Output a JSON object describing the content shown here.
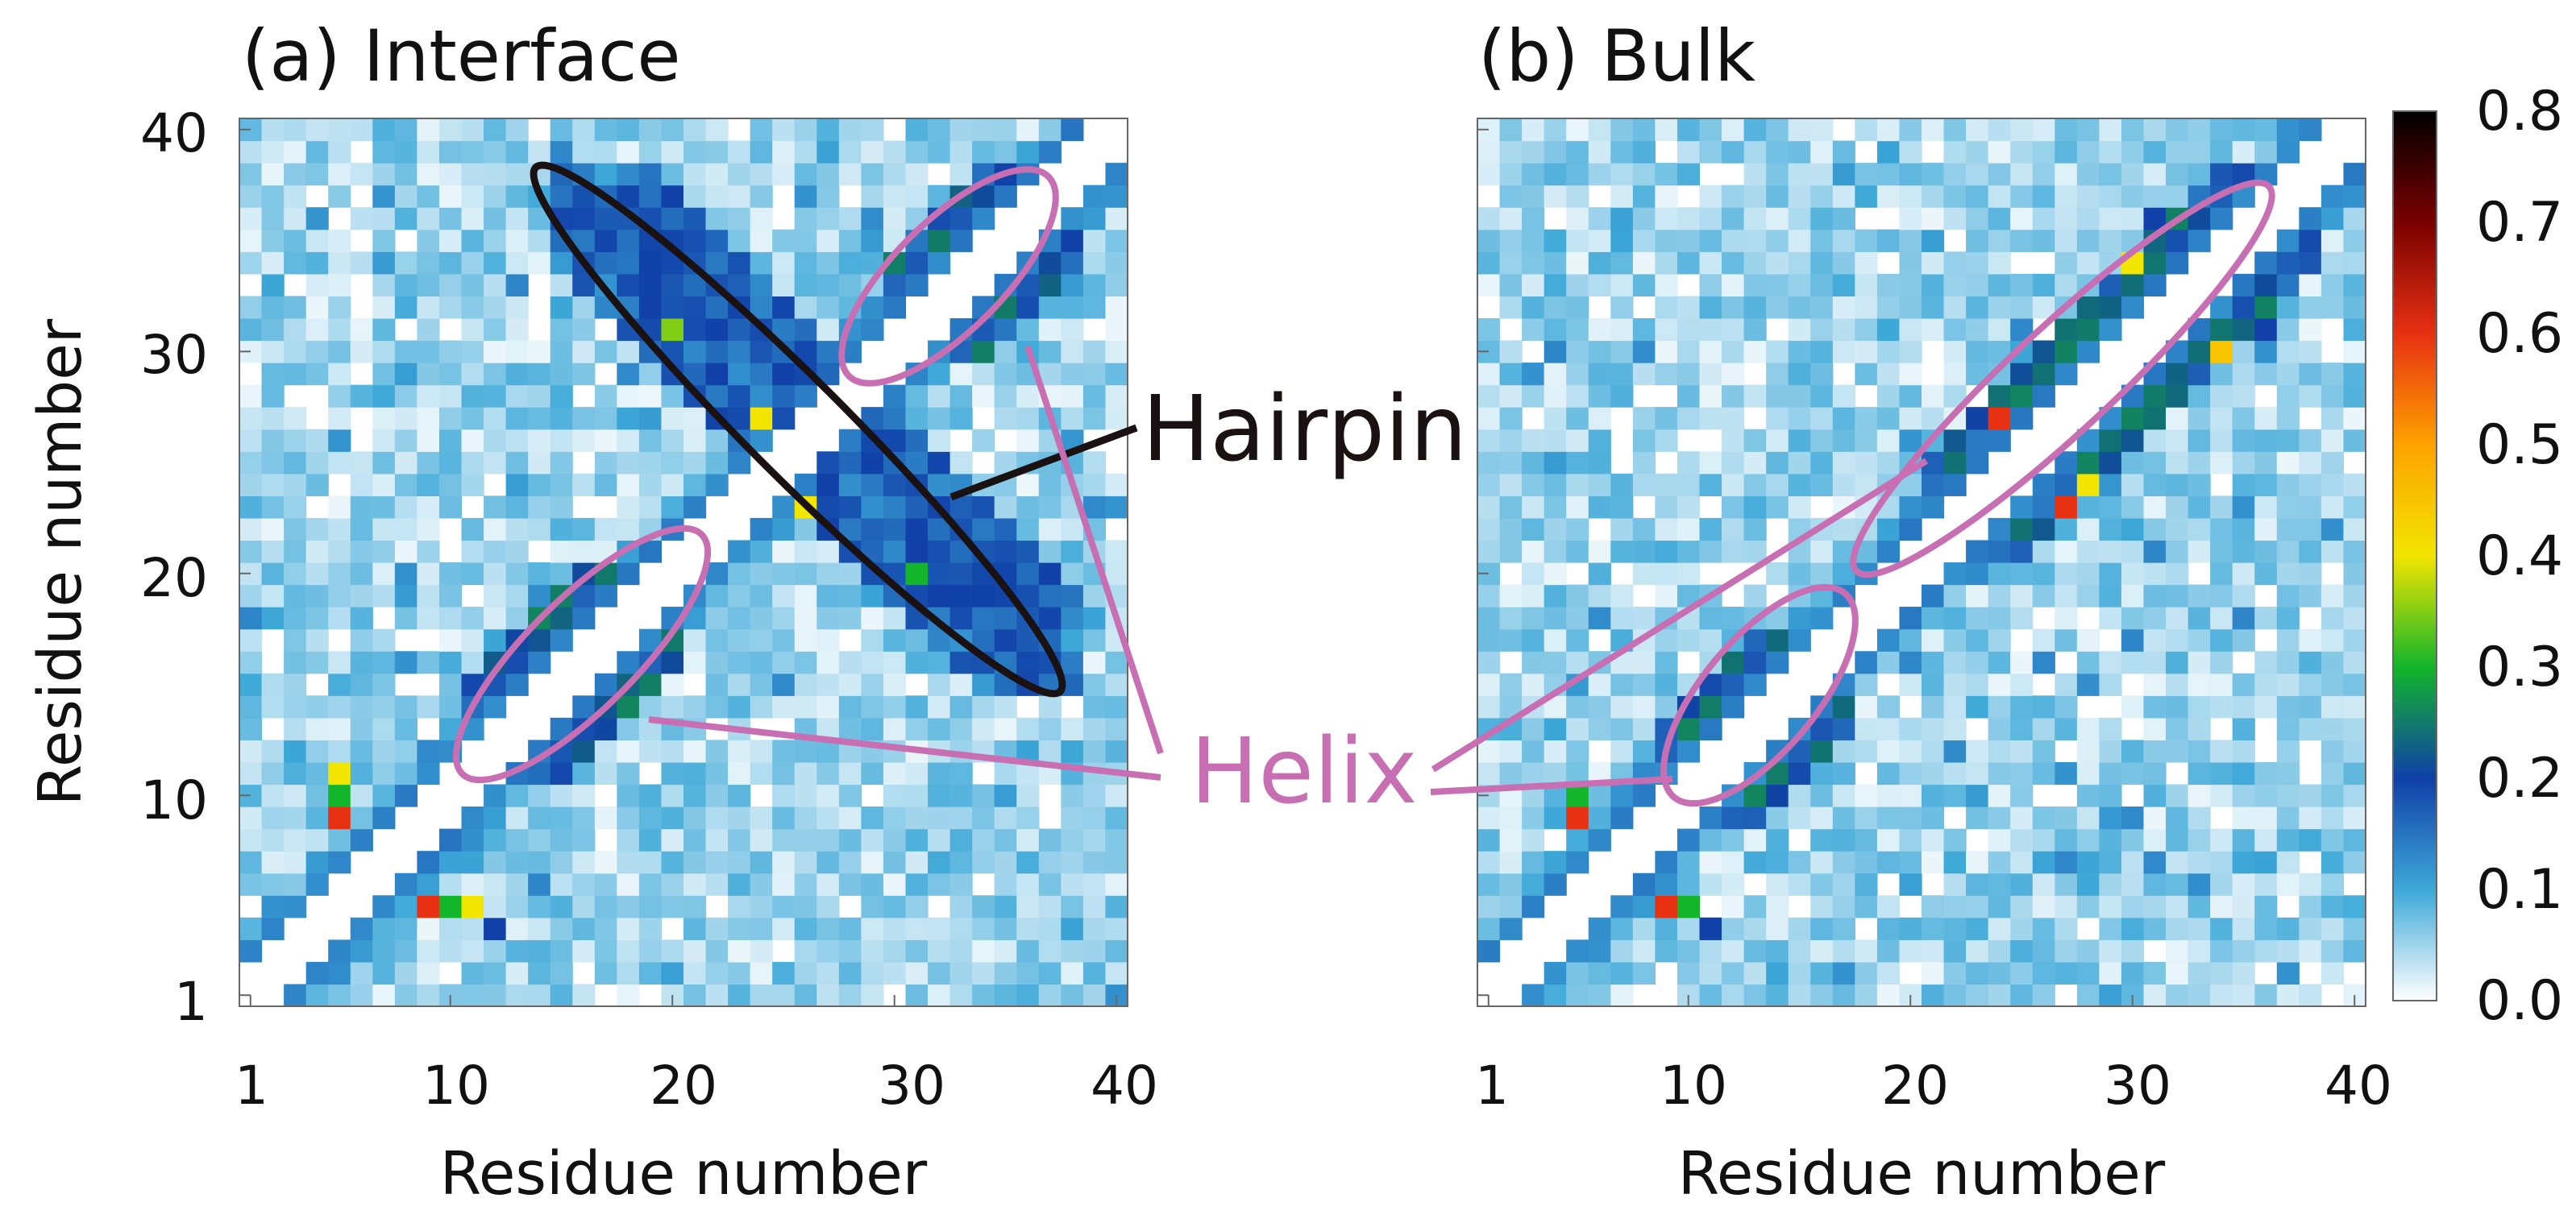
{
  "chart_data": [
    {
      "type": "heatmap",
      "title": "(a) Interface",
      "xlabel": "Residue number",
      "ylabel": "Residue number",
      "x_ticks": [
        "1",
        "10",
        "20",
        "30",
        "40"
      ],
      "y_ticks": [
        "1",
        "10",
        "20",
        "30",
        "40"
      ],
      "xlim": [
        1,
        40
      ],
      "ylim": [
        1,
        40
      ],
      "annotations": [
        "Hairpin",
        "Helix"
      ],
      "highlights": [
        {
          "label": "Helix",
          "residues": [
            [
              11,
              20
            ],
            [
              14,
              20
            ]
          ],
          "peak_value": 0.4
        },
        {
          "label": "Helix",
          "residues": [
            [
              30,
              37
            ],
            [
              32,
              38
            ]
          ],
          "peak_value": 0.4
        },
        {
          "label": "Hairpin",
          "residues": [
            [
              15,
              37
            ],
            [
              17,
              38
            ]
          ],
          "peak_value": 0.4
        }
      ],
      "notable_cells": [
        {
          "x": 5,
          "y": 9,
          "value": 0.6
        },
        {
          "x": 5,
          "y": 10,
          "value": 0.3
        },
        {
          "x": 5,
          "y": 11,
          "value": 0.4
        },
        {
          "x": 9,
          "y": 5,
          "value": 0.6
        },
        {
          "x": 10,
          "y": 5,
          "value": 0.3
        },
        {
          "x": 11,
          "y": 5,
          "value": 0.4
        },
        {
          "x": 12,
          "y": 4,
          "value": 0.2
        },
        {
          "x": 20,
          "y": 31,
          "value": 0.35
        },
        {
          "x": 19,
          "y": 32,
          "value": 0.2
        },
        {
          "x": 22,
          "y": 29,
          "value": 0.2
        },
        {
          "x": 24,
          "y": 27,
          "value": 0.4
        },
        {
          "x": 26,
          "y": 23,
          "value": 0.4
        },
        {
          "x": 27,
          "y": 24,
          "value": 0.2
        },
        {
          "x": 31,
          "y": 20,
          "value": 0.3
        },
        {
          "x": 32,
          "y": 19,
          "value": 0.2
        },
        {
          "x": 31,
          "y": 21,
          "value": 0.2
        }
      ]
    },
    {
      "type": "heatmap",
      "title": "(b) Bulk",
      "xlabel": "Residue number",
      "ylabel": "",
      "x_ticks": [
        "1",
        "10",
        "20",
        "30",
        "40"
      ],
      "xlim": [
        1,
        40
      ],
      "ylim": [
        1,
        40
      ],
      "annotations": [
        "Helix"
      ],
      "highlights": [
        {
          "label": "Helix",
          "residues": [
            [
              9,
              16
            ],
            [
              12,
              17
            ]
          ],
          "peak_value": 0.4
        },
        {
          "label": "Helix",
          "residues": [
            [
              21,
              37
            ],
            [
              24,
              38
            ]
          ],
          "peak_value": 0.55
        }
      ],
      "notable_cells": [
        {
          "x": 5,
          "y": 9,
          "value": 0.6
        },
        {
          "x": 5,
          "y": 10,
          "value": 0.3
        },
        {
          "x": 9,
          "y": 5,
          "value": 0.6
        },
        {
          "x": 10,
          "y": 5,
          "value": 0.3
        },
        {
          "x": 11,
          "y": 4,
          "value": 0.2
        },
        {
          "x": 27,
          "y": 23,
          "value": 0.6
        },
        {
          "x": 28,
          "y": 24,
          "value": 0.4
        },
        {
          "x": 24,
          "y": 27,
          "value": 0.6
        },
        {
          "x": 30,
          "y": 34,
          "value": 0.4
        },
        {
          "x": 34,
          "y": 30,
          "value": 0.45
        },
        {
          "x": 36,
          "y": 31,
          "value": 0.2
        },
        {
          "x": 31,
          "y": 36,
          "value": 0.2
        }
      ]
    }
  ],
  "colorbar": {
    "min": 0.0,
    "max": 0.8,
    "ticks": [
      "0.0",
      "0.1",
      "0.2",
      "0.3",
      "0.4",
      "0.5",
      "0.6",
      "0.7",
      "0.8"
    ],
    "colors": [
      "#ffffff",
      "#3da8d8",
      "#1040a8",
      "#13b52a",
      "#f2e500",
      "#ffa200",
      "#e83012",
      "#7a0000",
      "#000000"
    ]
  },
  "annotation_colors": {
    "hairpin": "#1a1212",
    "helix": "#c86fb3"
  }
}
